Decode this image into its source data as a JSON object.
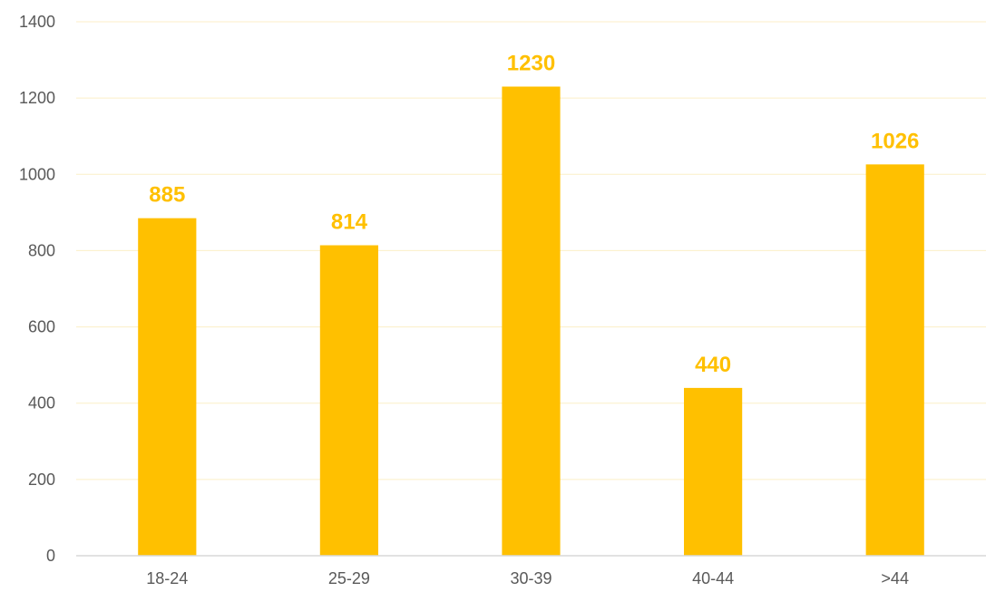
{
  "chart_data": {
    "type": "bar",
    "title": "",
    "xlabel": "",
    "ylabel": "",
    "categories": [
      "18-24",
      "25-29",
      "30-39",
      "40-44",
      ">44"
    ],
    "values": [
      885,
      814,
      1230,
      440,
      1026
    ],
    "data_labels": [
      "885",
      "814",
      "1230",
      "440",
      "1026"
    ],
    "ylim": [
      0,
      1400
    ],
    "yticks": [
      0,
      200,
      400,
      600,
      800,
      1000,
      1200,
      1400
    ],
    "ytick_labels": [
      "0",
      "200",
      "400",
      "600",
      "800",
      "1000",
      "1200",
      "1400"
    ],
    "grid": true,
    "legend": "none",
    "colors": {
      "bar": "#FFC000",
      "data_label": "#FFC000",
      "gridline": "#FCEFC7",
      "axis_line": "#D9D9D9",
      "tick_text": "#595959"
    }
  }
}
